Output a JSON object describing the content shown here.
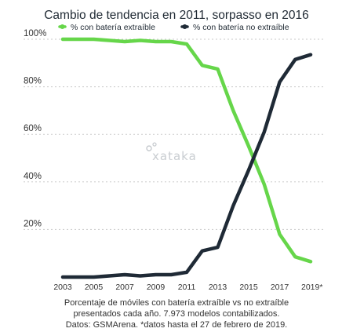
{
  "chart_data": {
    "type": "line",
    "title": "Cambio de tendencia en 2011, sorpasso en 2016",
    "legend_position": "top",
    "grid": true,
    "x": [
      "2003",
      "2004",
      "2005",
      "2006",
      "2007",
      "2008",
      "2009",
      "2010",
      "2011",
      "2012",
      "2013",
      "2014",
      "2015",
      "2016",
      "2017",
      "2018",
      "2019*"
    ],
    "x_tick_labels": [
      "2003",
      "2005",
      "2007",
      "2009",
      "2011",
      "2013",
      "2015",
      "2017",
      "2019*"
    ],
    "ylim": [
      0,
      100
    ],
    "y_tick_labels": [
      "20%",
      "40%",
      "60%",
      "80%",
      "100%"
    ],
    "series": [
      {
        "name": "% con batería extraíble",
        "color": "#66d64a",
        "values": [
          100,
          100,
          100,
          99.5,
          99,
          99.5,
          99,
          99,
          98,
          89,
          87.5,
          70,
          55,
          39,
          18,
          8.5,
          6.5
        ]
      },
      {
        "name": "% con batería no extraíble",
        "color": "#1f2a36",
        "values": [
          0,
          0,
          0,
          0.5,
          1,
          0.5,
          1,
          1,
          2,
          11,
          12.5,
          30,
          45,
          61,
          82,
          91.5,
          93.5
        ]
      }
    ],
    "caption": [
      "Porcentaje de móviles con batería extraíble vs no extraíble",
      "presentados cada año. 7.973 modelos contabilizados.",
      "Datos: GSMArena. *datos hasta el 27 de febrero de 2019."
    ]
  },
  "watermark": {
    "text": "xataka"
  }
}
